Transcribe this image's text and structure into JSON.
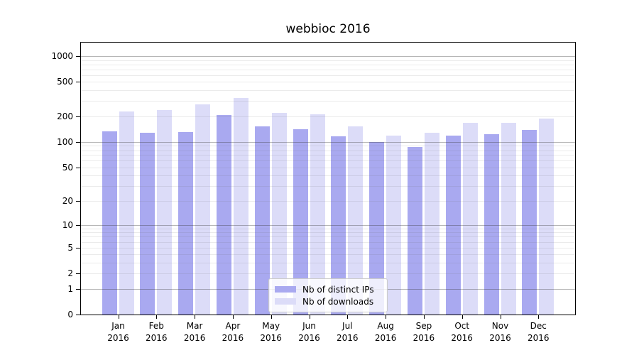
{
  "title": "webbioc 2016",
  "chart_data": {
    "type": "bar",
    "title": "webbioc 2016",
    "categories": [
      "Jan",
      "Feb",
      "Mar",
      "Apr",
      "May",
      "Jun",
      "Jul",
      "Aug",
      "Sep",
      "Oct",
      "Nov",
      "Dec"
    ],
    "x_year": "2016",
    "series": [
      {
        "name": "Nb of distinct IPs",
        "color": "#a9a9f0",
        "values": [
          134,
          127,
          130,
          205,
          152,
          142,
          116,
          100,
          88,
          119,
          122,
          137
        ]
      },
      {
        "name": "Nb of downloads",
        "color": "#dcdcf8",
        "values": [
          228,
          236,
          277,
          325,
          219,
          210,
          152,
          118,
          129,
          166,
          166,
          189
        ]
      }
    ],
    "yscale": "log10(1+x)",
    "yticks": [
      0,
      1,
      2,
      5,
      10,
      20,
      50,
      100,
      200,
      500,
      1000
    ],
    "ylim": [
      0,
      1434
    ],
    "grid": "horizontal; minor lines at 2-9 per decade, darker lines at powers of 10",
    "legend_position": "inside bottom-center"
  }
}
